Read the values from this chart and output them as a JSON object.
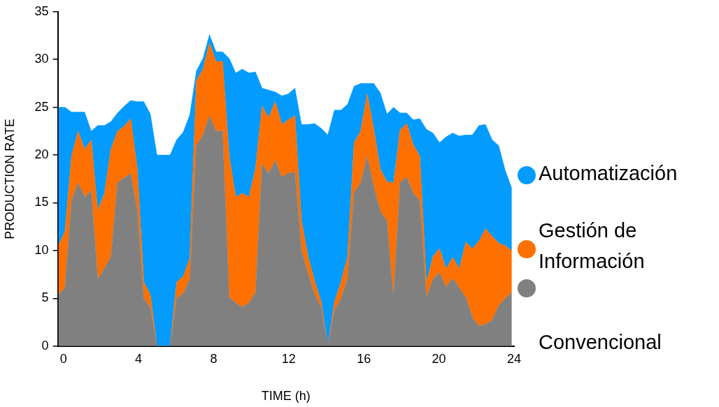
{
  "chart_data": {
    "type": "area",
    "stacked": true,
    "xlabel": "TIME (h)",
    "ylabel": "PRODUCTION RATE",
    "legend": "right",
    "grid": false,
    "x": [
      -0.27,
      0.08,
      0.43,
      0.78,
      1.13,
      1.48,
      1.83,
      2.18,
      2.53,
      2.88,
      3.23,
      3.58,
      3.93,
      4.28,
      4.63,
      4.98,
      5.33,
      5.68,
      6.03,
      6.38,
      6.73,
      7.08,
      7.43,
      7.78,
      8.13,
      8.48,
      8.83,
      9.18,
      9.53,
      9.88,
      10.23,
      10.58,
      10.93,
      11.28,
      11.63,
      11.98,
      12.33,
      12.68,
      13.03,
      13.38,
      13.73,
      14.08,
      14.43,
      14.78,
      15.13,
      15.48,
      15.83,
      16.18,
      16.53,
      16.88,
      17.23,
      17.58,
      17.93,
      18.28,
      18.63,
      18.98,
      19.33,
      19.68,
      20.03,
      20.38,
      20.73,
      21.08,
      21.43,
      21.78,
      22.13,
      22.48,
      22.83,
      23.18,
      23.53,
      23.88
    ],
    "xlim": [
      -0.3,
      24
    ],
    "xticks": [
      0,
      4,
      8,
      12,
      16,
      20,
      24
    ],
    "ylim": [
      0,
      35
    ],
    "yticks": [
      0,
      5,
      10,
      15,
      20,
      25,
      30,
      35
    ],
    "series": [
      {
        "name": "Convencional",
        "color": "#808080",
        "values": [
          5.4,
          6.1,
          15.2,
          17.1,
          15.6,
          16.3,
          7.0,
          8.1,
          9.4,
          17.1,
          17.6,
          18.1,
          14.2,
          5.0,
          4.0,
          0,
          0,
          0,
          5.0,
          5.5,
          7.0,
          21.0,
          22.1,
          24.1,
          22.5,
          22.5,
          5.1,
          4.5,
          4.1,
          4.5,
          5.6,
          19.1,
          18.1,
          19.4,
          17.7,
          18.1,
          18.2,
          10.0,
          7.6,
          5.4,
          4.0,
          0,
          3.7,
          5.0,
          7.0,
          16.1,
          17.1,
          19.9,
          16.7,
          14.1,
          13.1,
          5.1,
          17.1,
          17.7,
          16.0,
          15.2,
          5.1,
          7.0,
          7.7,
          6.2,
          7.1,
          6.1,
          5.1,
          3.0,
          2.1,
          2.3,
          2.7,
          4.2,
          5.0,
          5.6
        ]
      },
      {
        "name": "Gestión de Información",
        "color": "#fe7000",
        "values": [
          5.1,
          5.9,
          4.7,
          5.4,
          5.0,
          5.3,
          7.2,
          7.9,
          11.2,
          5.4,
          5.4,
          5.7,
          4.5,
          1.7,
          1.4,
          0,
          0,
          0,
          1.7,
          1.8,
          2.2,
          6.8,
          6.9,
          7.6,
          7.3,
          7.3,
          14.8,
          11.1,
          11.9,
          11.1,
          13.0,
          6.0,
          5.8,
          6.2,
          5.5,
          5.6,
          5.9,
          3.1,
          1.8,
          1.4,
          0.6,
          0,
          0.9,
          1.7,
          2.3,
          5.2,
          5.4,
          6.5,
          6.0,
          4.4,
          4.1,
          12.0,
          5.5,
          5.6,
          5.1,
          4.7,
          1.6,
          2.4,
          2.5,
          1.9,
          2.2,
          2.0,
          5.8,
          7.2,
          8.9,
          10.0,
          8.8,
          6.6,
          5.5,
          4.4
        ]
      },
      {
        "name": "Automatización",
        "color": "#039bfd",
        "values": [
          14.5,
          13.0,
          4.6,
          2.0,
          3.9,
          0.9,
          8.9,
          7.1,
          2.9,
          1.9,
          2.1,
          1.9,
          6.9,
          18.9,
          18.9,
          20.0,
          20.0,
          20.0,
          14.9,
          15.1,
          15.0,
          1.0,
          1.1,
          0.9,
          1.0,
          1.0,
          10.2,
          13.0,
          13.0,
          13.0,
          10.1,
          1.9,
          2.9,
          1.0,
          3.0,
          2.7,
          2.9,
          10.1,
          13.8,
          16.5,
          18.2,
          22.1,
          20.1,
          18.0,
          16.0,
          5.9,
          5.0,
          1.1,
          4.8,
          8.0,
          7.1,
          7.9,
          1.8,
          1.1,
          2.6,
          3.9,
          16.0,
          12.9,
          11.1,
          13.8,
          13.0,
          13.9,
          11.2,
          11.9,
          12.1,
          10.9,
          10.1,
          10.2,
          7.9,
          6.5
        ]
      }
    ]
  }
}
